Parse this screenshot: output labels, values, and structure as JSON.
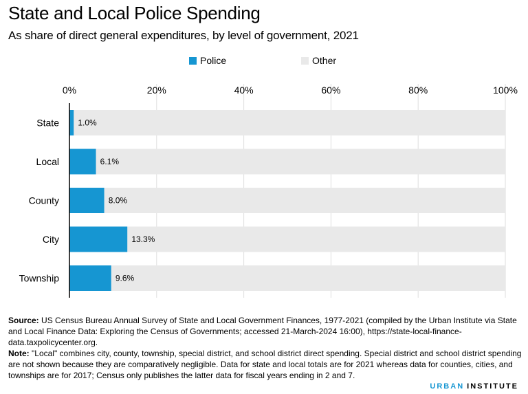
{
  "title": "State and Local Police Spending",
  "subtitle": "As share of direct general expenditures, by level of government, 2021",
  "legend": [
    {
      "label": "Police",
      "color": "#1696d2"
    },
    {
      "label": "Other",
      "color": "#e9e9e9"
    }
  ],
  "chart_data": {
    "type": "bar",
    "orientation": "horizontal",
    "stacked": true,
    "title": "State and Local Police Spending",
    "subtitle": "As share of direct general expenditures, by level of government, 2021",
    "categories": [
      "State",
      "Local",
      "County",
      "City",
      "Township"
    ],
    "series": [
      {
        "name": "Police",
        "color": "#1696d2",
        "values": [
          1.0,
          6.1,
          8.0,
          13.3,
          9.6
        ],
        "labels": [
          "1.0%",
          "6.1%",
          "8.0%",
          "13.3%",
          "9.6%"
        ]
      },
      {
        "name": "Other",
        "color": "#e9e9e9",
        "values": [
          99.0,
          93.9,
          92.0,
          86.7,
          90.4
        ]
      }
    ],
    "xlim": [
      0,
      100
    ],
    "xticks": [
      0,
      20,
      40,
      60,
      80,
      100
    ],
    "xtick_labels": [
      "0%",
      "20%",
      "40%",
      "60%",
      "80%",
      "100%"
    ],
    "xlabel": "",
    "ylabel": "",
    "grid": true,
    "legend_position": "top"
  },
  "notes": {
    "source_label": "Source:",
    "source_text": " US Census Bureau Annual Survey of State and Local Government Finances, 1977-2021 (compiled by the Urban Institute via State and Local Finance Data: Exploring the Census of Governments; accessed 21-March-2024 16:00), https://state-local-finance-data.taxpolicycenter.org.",
    "note_label": "Note:",
    "note_text": " \"Local\" combines city, county, township, special district, and school district direct spending. Special district and school district spending are not shown because they are comparatively negligible. Data for state and local totals are for 2021 whereas data for counties, cities, and townships are for 2017; Census only publishes the latter data for fiscal years ending in 2 and 7."
  },
  "brand": {
    "part1": "URBAN",
    "part2": "INSTITUTE"
  }
}
